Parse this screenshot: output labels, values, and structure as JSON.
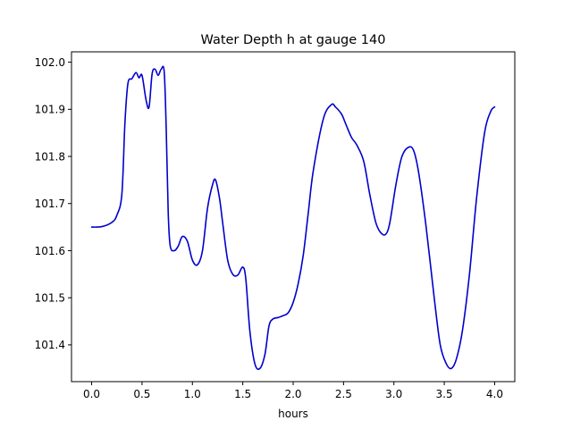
{
  "chart_data": {
    "type": "line",
    "title": "Water Depth h at gauge 140",
    "xlabel": "hours",
    "ylabel": "",
    "xlim": [
      -0.2,
      4.2
    ],
    "ylim": [
      101.322,
      102.022
    ],
    "xticks": [
      0.0,
      0.5,
      1.0,
      1.5,
      2.0,
      2.5,
      3.0,
      3.5,
      4.0
    ],
    "xtick_labels": [
      "0.0",
      "0.5",
      "1.0",
      "1.5",
      "2.0",
      "2.5",
      "3.0",
      "3.5",
      "4.0"
    ],
    "yticks": [
      101.4,
      101.5,
      101.6,
      101.7,
      101.8,
      101.9,
      102.0
    ],
    "ytick_labels": [
      "101.4",
      "101.5",
      "101.6",
      "101.7",
      "101.8",
      "101.9",
      "102.0"
    ],
    "grid": false,
    "series": [
      {
        "color": "#0000cc",
        "x": [
          0.0,
          0.1,
          0.2,
          0.25,
          0.3,
          0.33,
          0.36,
          0.4,
          0.44,
          0.47,
          0.5,
          0.54,
          0.57,
          0.6,
          0.63,
          0.66,
          0.69,
          0.72,
          0.74,
          0.76,
          0.78,
          0.82,
          0.86,
          0.9,
          0.95,
          1.0,
          1.05,
          1.1,
          1.15,
          1.2,
          1.23,
          1.27,
          1.3,
          1.35,
          1.4,
          1.45,
          1.5,
          1.53,
          1.57,
          1.62,
          1.67,
          1.72,
          1.76,
          1.8,
          1.85,
          1.9,
          1.95,
          2.0,
          2.05,
          2.1,
          2.15,
          2.2,
          2.3,
          2.38,
          2.42,
          2.48,
          2.52,
          2.58,
          2.63,
          2.7,
          2.76,
          2.82,
          2.87,
          2.92,
          2.96,
          3.02,
          3.08,
          3.15,
          3.2,
          3.25,
          3.32,
          3.4,
          3.46,
          3.52,
          3.57,
          3.62,
          3.68,
          3.75,
          3.82,
          3.9,
          3.96,
          4.0
        ],
        "values": [
          101.65,
          101.651,
          101.66,
          101.675,
          101.72,
          101.87,
          101.955,
          101.965,
          101.978,
          101.967,
          101.972,
          101.92,
          101.905,
          101.975,
          101.985,
          101.972,
          101.985,
          101.98,
          101.86,
          101.68,
          101.61,
          101.6,
          101.61,
          101.63,
          101.62,
          101.58,
          101.57,
          101.6,
          101.69,
          101.74,
          101.75,
          101.71,
          101.66,
          101.58,
          101.55,
          101.548,
          101.565,
          101.54,
          101.43,
          101.36,
          101.35,
          101.38,
          101.44,
          101.455,
          101.458,
          101.462,
          101.468,
          101.49,
          101.53,
          101.59,
          101.68,
          101.77,
          101.88,
          101.91,
          101.905,
          101.89,
          101.87,
          101.84,
          101.825,
          101.79,
          101.72,
          101.66,
          101.638,
          101.635,
          101.66,
          101.74,
          101.8,
          101.82,
          101.81,
          101.76,
          101.65,
          101.5,
          101.4,
          101.36,
          101.35,
          101.37,
          101.43,
          101.55,
          101.71,
          101.85,
          101.895,
          101.905
        ]
      }
    ]
  }
}
